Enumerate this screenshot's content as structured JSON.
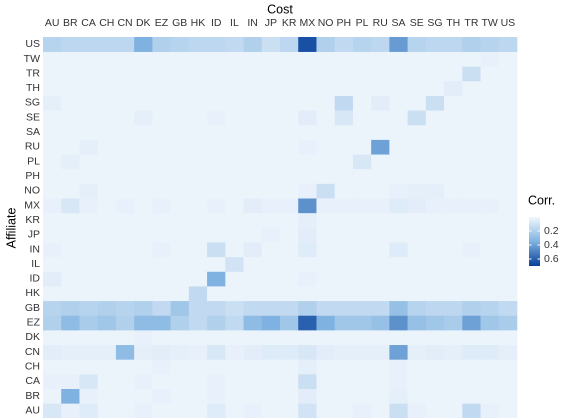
{
  "chart_data": {
    "type": "heatmap",
    "title": "Cost",
    "y_label": "Affiliate",
    "legend_title": "Corr.",
    "x": [
      "AU",
      "BR",
      "CA",
      "CH",
      "CN",
      "DK",
      "EZ",
      "GB",
      "HK",
      "ID",
      "IL",
      "IN",
      "JP",
      "KR",
      "MX",
      "NO",
      "PH",
      "PL",
      "RU",
      "SA",
      "SE",
      "SG",
      "TH",
      "TR",
      "TW",
      "US"
    ],
    "y": [
      "AU",
      "BR",
      "CA",
      "CH",
      "CN",
      "DK",
      "EZ",
      "GB",
      "HK",
      "ID",
      "IL",
      "IN",
      "JP",
      "KR",
      "MX",
      "NO",
      "PH",
      "PL",
      "RU",
      "SA",
      "SE",
      "SG",
      "TH",
      "TR",
      "TW",
      "US"
    ],
    "values": [
      [
        0.08,
        0.03,
        0.06,
        0.02,
        0.02,
        0.03,
        0.02,
        0.02,
        0.02,
        0.06,
        0.02,
        0.03,
        0.02,
        0.02,
        0.1,
        0.02,
        0.02,
        0.03,
        0.02,
        0.12,
        0.03,
        0.02,
        0.02,
        0.15,
        0.03,
        0.02
      ],
      [
        0.02,
        0.35,
        0.03,
        0.02,
        0.02,
        0.02,
        0.03,
        0.02,
        0.02,
        0.03,
        0.02,
        0.02,
        0.02,
        0.02,
        0.05,
        0.02,
        0.02,
        0.02,
        0.02,
        0.04,
        0.02,
        0.02,
        0.02,
        0.02,
        0.02,
        0.02
      ],
      [
        0.03,
        0.03,
        0.08,
        0.02,
        0.02,
        0.03,
        0.02,
        0.02,
        0.02,
        0.03,
        0.02,
        0.02,
        0.02,
        0.02,
        0.12,
        0.02,
        0.02,
        0.02,
        0.02,
        0.03,
        0.02,
        0.02,
        0.02,
        0.02,
        0.02,
        0.02
      ],
      [
        0.02,
        0.02,
        0.02,
        0.02,
        0.02,
        0.02,
        0.03,
        0.02,
        0.02,
        0.02,
        0.02,
        0.02,
        0.02,
        0.02,
        0.04,
        0.02,
        0.02,
        0.02,
        0.02,
        0.03,
        0.02,
        0.02,
        0.02,
        0.02,
        0.02,
        0.02
      ],
      [
        0.05,
        0.04,
        0.04,
        0.04,
        0.3,
        0.04,
        0.05,
        0.04,
        0.03,
        0.08,
        0.03,
        0.05,
        0.06,
        0.06,
        0.08,
        0.05,
        0.04,
        0.04,
        0.04,
        0.4,
        0.04,
        0.05,
        0.04,
        0.06,
        0.06,
        0.04
      ],
      [
        0.02,
        0.02,
        0.02,
        0.02,
        0.02,
        0.03,
        0.02,
        0.02,
        0.02,
        0.02,
        0.02,
        0.02,
        0.02,
        0.02,
        0.02,
        0.02,
        0.02,
        0.02,
        0.02,
        0.02,
        0.02,
        0.02,
        0.02,
        0.02,
        0.02,
        0.02
      ],
      [
        0.2,
        0.3,
        0.22,
        0.25,
        0.2,
        0.3,
        0.3,
        0.2,
        0.15,
        0.2,
        0.15,
        0.3,
        0.35,
        0.25,
        0.6,
        0.35,
        0.25,
        0.25,
        0.28,
        0.45,
        0.28,
        0.25,
        0.22,
        0.4,
        0.25,
        0.22
      ],
      [
        0.18,
        0.2,
        0.18,
        0.2,
        0.18,
        0.2,
        0.15,
        0.25,
        0.15,
        0.15,
        0.12,
        0.15,
        0.15,
        0.15,
        0.2,
        0.15,
        0.15,
        0.15,
        0.15,
        0.28,
        0.18,
        0.16,
        0.16,
        0.2,
        0.18,
        0.15
      ],
      [
        0.02,
        0.02,
        0.02,
        0.02,
        0.02,
        0.02,
        0.02,
        0.02,
        0.15,
        0.02,
        0.02,
        0.02,
        0.02,
        0.02,
        0.02,
        0.02,
        0.02,
        0.02,
        0.02,
        0.02,
        0.02,
        0.02,
        0.02,
        0.02,
        0.02,
        0.02
      ],
      [
        0.05,
        0.02,
        0.02,
        0.02,
        0.02,
        0.02,
        0.02,
        0.02,
        0.02,
        0.35,
        0.02,
        0.02,
        0.02,
        0.02,
        0.03,
        0.02,
        0.02,
        0.02,
        0.02,
        0.02,
        0.02,
        0.02,
        0.02,
        0.02,
        0.02,
        0.02
      ],
      [
        0.02,
        0.02,
        0.02,
        0.02,
        0.02,
        0.02,
        0.02,
        0.02,
        0.02,
        0.02,
        0.1,
        0.02,
        0.02,
        0.02,
        0.02,
        0.02,
        0.02,
        0.02,
        0.02,
        0.02,
        0.02,
        0.02,
        0.02,
        0.02,
        0.02,
        0.02
      ],
      [
        0.03,
        0.02,
        0.02,
        0.02,
        0.02,
        0.02,
        0.03,
        0.02,
        0.02,
        0.12,
        0.02,
        0.05,
        0.02,
        0.02,
        0.06,
        0.02,
        0.02,
        0.02,
        0.02,
        0.06,
        0.02,
        0.02,
        0.02,
        0.03,
        0.02,
        0.02
      ],
      [
        0.02,
        0.02,
        0.02,
        0.02,
        0.02,
        0.02,
        0.02,
        0.02,
        0.02,
        0.02,
        0.02,
        0.02,
        0.03,
        0.02,
        0.05,
        0.02,
        0.02,
        0.02,
        0.02,
        0.02,
        0.02,
        0.02,
        0.02,
        0.02,
        0.02,
        0.02
      ],
      [
        0.02,
        0.02,
        0.02,
        0.02,
        0.02,
        0.02,
        0.02,
        0.02,
        0.02,
        0.02,
        0.02,
        0.02,
        0.02,
        0.02,
        0.04,
        0.02,
        0.02,
        0.02,
        0.02,
        0.02,
        0.02,
        0.02,
        0.02,
        0.02,
        0.02,
        0.02
      ],
      [
        0.03,
        0.08,
        0.03,
        0.02,
        0.03,
        0.02,
        0.03,
        0.02,
        0.02,
        0.03,
        0.02,
        0.05,
        0.03,
        0.03,
        0.45,
        0.03,
        0.03,
        0.03,
        0.03,
        0.06,
        0.05,
        0.03,
        0.03,
        0.03,
        0.03,
        0.02
      ],
      [
        0.02,
        0.02,
        0.04,
        0.02,
        0.02,
        0.02,
        0.02,
        0.02,
        0.02,
        0.02,
        0.02,
        0.02,
        0.02,
        0.02,
        0.03,
        0.12,
        0.02,
        0.02,
        0.02,
        0.03,
        0.04,
        0.04,
        0.02,
        0.02,
        0.02,
        0.02
      ],
      [
        0.02,
        0.02,
        0.02,
        0.02,
        0.02,
        0.02,
        0.02,
        0.02,
        0.02,
        0.02,
        0.02,
        0.02,
        0.02,
        0.02,
        0.02,
        0.02,
        0.02,
        0.02,
        0.02,
        0.02,
        0.02,
        0.02,
        0.02,
        0.02,
        0.02,
        0.02
      ],
      [
        0.02,
        0.04,
        0.02,
        0.02,
        0.02,
        0.02,
        0.02,
        0.02,
        0.02,
        0.02,
        0.02,
        0.02,
        0.02,
        0.02,
        0.02,
        0.02,
        0.02,
        0.08,
        0.02,
        0.02,
        0.02,
        0.02,
        0.02,
        0.02,
        0.02,
        0.02
      ],
      [
        0.02,
        0.02,
        0.04,
        0.02,
        0.02,
        0.02,
        0.02,
        0.02,
        0.02,
        0.02,
        0.02,
        0.02,
        0.02,
        0.02,
        0.03,
        0.02,
        0.02,
        0.02,
        0.4,
        0.02,
        0.02,
        0.02,
        0.02,
        0.02,
        0.02,
        0.02
      ],
      [
        0.02,
        0.02,
        0.02,
        0.02,
        0.02,
        0.02,
        0.02,
        0.02,
        0.02,
        0.02,
        0.02,
        0.02,
        0.02,
        0.02,
        0.02,
        0.02,
        0.02,
        0.02,
        0.02,
        0.02,
        0.02,
        0.02,
        0.02,
        0.02,
        0.02,
        0.02
      ],
      [
        0.02,
        0.02,
        0.02,
        0.02,
        0.02,
        0.04,
        0.02,
        0.02,
        0.02,
        0.03,
        0.02,
        0.02,
        0.02,
        0.02,
        0.05,
        0.02,
        0.08,
        0.02,
        0.02,
        0.02,
        0.12,
        0.02,
        0.02,
        0.02,
        0.02,
        0.02
      ],
      [
        0.04,
        0.02,
        0.02,
        0.02,
        0.02,
        0.02,
        0.02,
        0.02,
        0.02,
        0.02,
        0.02,
        0.02,
        0.02,
        0.02,
        0.02,
        0.02,
        0.15,
        0.02,
        0.05,
        0.02,
        0.02,
        0.12,
        0.02,
        0.02,
        0.02,
        0.02
      ],
      [
        0.02,
        0.02,
        0.02,
        0.02,
        0.02,
        0.02,
        0.02,
        0.02,
        0.02,
        0.02,
        0.02,
        0.02,
        0.02,
        0.02,
        0.02,
        0.02,
        0.02,
        0.02,
        0.02,
        0.02,
        0.02,
        0.02,
        0.05,
        0.02,
        0.02,
        0.02
      ],
      [
        0.02,
        0.02,
        0.02,
        0.02,
        0.02,
        0.02,
        0.02,
        0.02,
        0.02,
        0.02,
        0.02,
        0.02,
        0.02,
        0.02,
        0.02,
        0.02,
        0.02,
        0.02,
        0.02,
        0.02,
        0.02,
        0.02,
        0.02,
        0.12,
        0.02,
        0.02
      ],
      [
        0.02,
        0.02,
        0.02,
        0.02,
        0.02,
        0.02,
        0.02,
        0.02,
        0.02,
        0.02,
        0.02,
        0.02,
        0.02,
        0.02,
        0.02,
        0.02,
        0.02,
        0.02,
        0.02,
        0.02,
        0.02,
        0.02,
        0.02,
        0.02,
        0.03,
        0.02
      ],
      [
        0.18,
        0.16,
        0.16,
        0.16,
        0.16,
        0.35,
        0.2,
        0.18,
        0.16,
        0.16,
        0.15,
        0.2,
        0.12,
        0.16,
        0.65,
        0.2,
        0.15,
        0.18,
        0.16,
        0.42,
        0.18,
        0.16,
        0.16,
        0.2,
        0.18,
        0.16
      ]
    ],
    "colors": [
      "#f2f7fd",
      "#7fb2e0",
      "#08409a"
    ],
    "clim": [
      0,
      0.7
    ],
    "legend_ticks": [
      0.2,
      0.4,
      0.6
    ]
  }
}
